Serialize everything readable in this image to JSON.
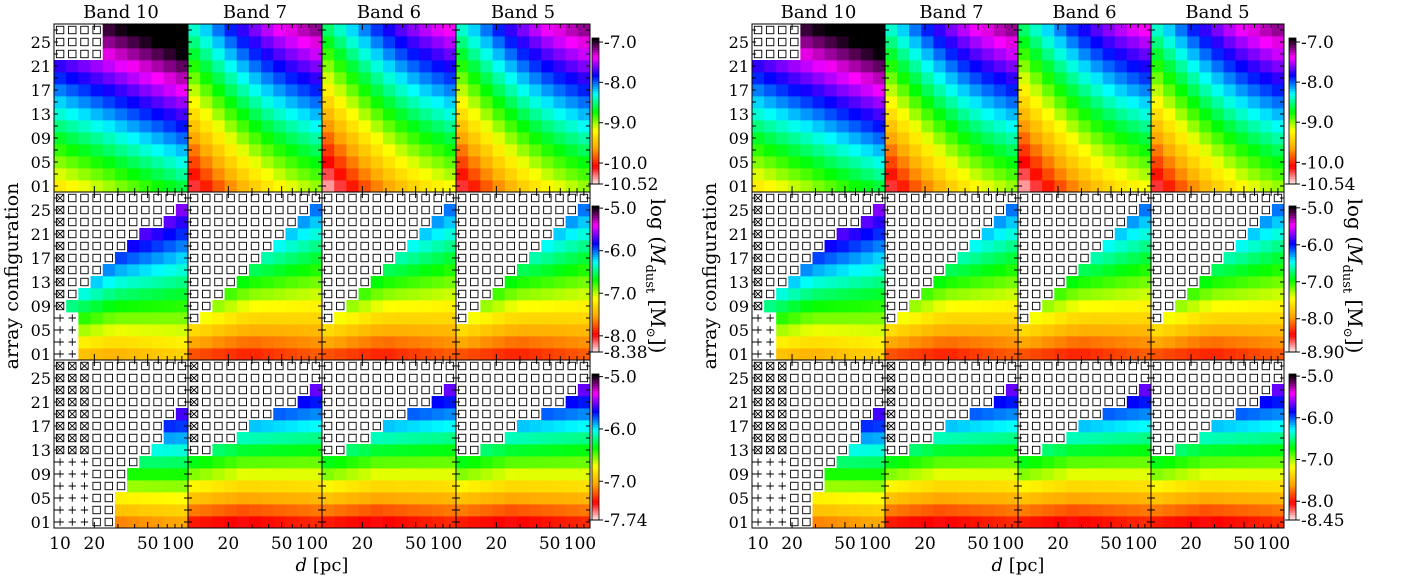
{
  "figure": {
    "band_labels": [
      "Band 10",
      "Band 7",
      "Band 6",
      "Band 5"
    ],
    "ylabel": "array configuration",
    "xlabel_var": "d",
    "xlabel_unit": " [pc]",
    "x_ticks": {
      "band10": [
        "10",
        "20",
        "50",
        "100"
      ],
      "other": [
        "20",
        "50",
        "100"
      ]
    },
    "y_ticks": [
      "01",
      "05",
      "09",
      "13",
      "17",
      "21",
      "25"
    ],
    "cbar_label_prefix": "log (",
    "cbar_label_var": "M",
    "cbar_label_sub": "dust",
    "cbar_label_suffix": " [M",
    "cbar_label_end": "])"
  },
  "colors": {
    "colormap": [
      "#ffffff",
      "#ff0000",
      "#ffa500",
      "#ffff00",
      "#00ff00",
      "#00ffff",
      "#0000ff",
      "#ff00ff",
      "#000000"
    ],
    "mask_edge": "#000000",
    "frame": "#000000"
  },
  "chart_data": [
    {
      "type": "heatmap",
      "panel": "left",
      "note": "x = distance d [pc] (log, 10 to 100, 11 columns); y = array configuration 01-27; value = log(M_dust [M_sun]); cells outside detectable region marked with open squares, crossed squares, plus signs",
      "x": [
        10,
        12.6,
        15.8,
        20,
        25.1,
        31.6,
        39.8,
        50.1,
        63.1,
        79.4,
        100
      ],
      "y": [
        1,
        3,
        5,
        7,
        9,
        11,
        13,
        15,
        17,
        19,
        21,
        23,
        25,
        27
      ],
      "rows": [
        {
          "row": "top",
          "ticks": [
            "-7.0",
            "-8.0",
            "-9.0",
            "-10.0"
          ],
          "min_label": "-10.52",
          "vmin": -10.52,
          "vmax": -6.9,
          "tick_values": [
            -7.0,
            -8.0,
            -9.0,
            -10.0
          ]
        },
        {
          "row": "middle",
          "ticks": [
            "-5.0",
            "-6.0",
            "-7.0",
            "-8.0"
          ],
          "min_label": "-8.38",
          "vmin": -8.38,
          "vmax": -4.95,
          "tick_values": [
            -5.0,
            -6.0,
            -7.0,
            -8.0
          ]
        },
        {
          "row": "bottom",
          "ticks": [
            "-5.0",
            "-6.0",
            "-7.0"
          ],
          "min_label": "-7.74",
          "vmin": -7.74,
          "vmax": -4.95,
          "tick_values": [
            -5.0,
            -6.0,
            -7.0
          ]
        }
      ]
    },
    {
      "type": "heatmap",
      "panel": "right",
      "x": [
        10,
        12.6,
        15.8,
        20,
        25.1,
        31.6,
        39.8,
        50.1,
        63.1,
        79.4,
        100
      ],
      "y": [
        1,
        3,
        5,
        7,
        9,
        11,
        13,
        15,
        17,
        19,
        21,
        23,
        25,
        27
      ],
      "rows": [
        {
          "row": "top",
          "ticks": [
            "-7.0",
            "-8.0",
            "-9.0",
            "-10.0"
          ],
          "min_label": "-10.54",
          "vmin": -10.54,
          "vmax": -6.9,
          "tick_values": [
            -7.0,
            -8.0,
            -9.0,
            -10.0
          ]
        },
        {
          "row": "middle",
          "ticks": [
            "-5.0",
            "-6.0",
            "-7.0",
            "-8.0"
          ],
          "min_label": "-8.90",
          "vmin": -8.9,
          "vmax": -4.95,
          "tick_values": [
            -5.0,
            -6.0,
            -7.0,
            -8.0
          ]
        },
        {
          "row": "bottom",
          "ticks": [
            "-5.0",
            "-6.0",
            "-7.0",
            "-8.0"
          ],
          "min_label": "-8.45",
          "vmin": -8.45,
          "vmax": -4.95,
          "tick_values": [
            -5.0,
            -6.0,
            -7.0,
            -8.0
          ]
        }
      ]
    }
  ]
}
